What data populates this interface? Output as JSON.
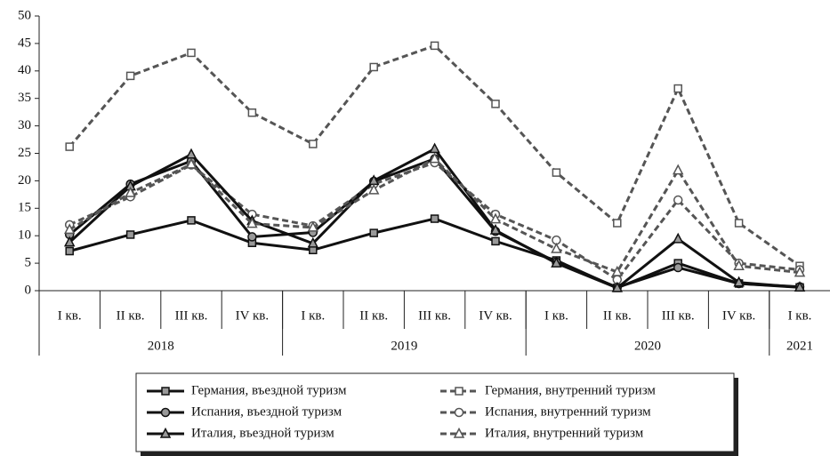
{
  "chart_data": {
    "type": "line",
    "groups": [
      {
        "name": "2018",
        "categories": [
          "I кв.",
          "II кв.",
          "III кв.",
          "IV кв."
        ]
      },
      {
        "name": "2019",
        "categories": [
          "I кв.",
          "II кв.",
          "III кв.",
          "IV кв."
        ]
      },
      {
        "name": "2020",
        "categories": [
          "I кв.",
          "II кв.",
          "III кв.",
          "IV кв."
        ]
      },
      {
        "name": "2021",
        "categories": [
          "I кв."
        ]
      }
    ],
    "ylim": [
      0,
      50
    ],
    "yticks": [
      0,
      5,
      10,
      15,
      20,
      25,
      30,
      35,
      40,
      45,
      50
    ],
    "grid": false,
    "series": [
      {
        "name": "Германия, въездной туризм",
        "color": "#111111",
        "marker": "square",
        "dash": false,
        "values": [
          7.2,
          10.2,
          12.8,
          8.7,
          7.4,
          10.5,
          13.1,
          9.0,
          5.5,
          0.5,
          5.0,
          1.3,
          0.6
        ]
      },
      {
        "name": "Германия, внутренний туризм",
        "color": "#555555",
        "marker": "square",
        "dash": true,
        "values": [
          26.2,
          39.1,
          43.3,
          32.4,
          26.7,
          40.7,
          44.6,
          34.0,
          21.5,
          12.3,
          36.8,
          12.3,
          4.5
        ]
      },
      {
        "name": "Испания, въездной туризм",
        "color": "#111111",
        "marker": "circle",
        "dash": false,
        "values": [
          10.2,
          19.4,
          23.6,
          9.8,
          10.6,
          19.9,
          24.0,
          10.8,
          5.2,
          0.6,
          4.2,
          1.3,
          0.7
        ]
      },
      {
        "name": "Испания, внутренний туризм",
        "color": "#555555",
        "marker": "circle",
        "dash": true,
        "values": [
          12.0,
          17.1,
          22.9,
          13.9,
          11.8,
          19.4,
          23.3,
          13.9,
          9.2,
          2.0,
          16.5,
          5.0,
          3.8
        ]
      },
      {
        "name": "Италия, въездной туризм",
        "color": "#111111",
        "marker": "triangle",
        "dash": false,
        "values": [
          8.8,
          19.0,
          24.8,
          12.7,
          8.6,
          20.0,
          25.8,
          11.0,
          5.0,
          0.5,
          9.4,
          1.5,
          0.6
        ]
      },
      {
        "name": "Италия, внутренний туризм",
        "color": "#555555",
        "marker": "triangle",
        "dash": true,
        "values": [
          11.1,
          17.8,
          23.0,
          12.2,
          11.5,
          18.3,
          24.0,
          13.0,
          7.6,
          3.4,
          21.9,
          4.5,
          3.3
        ]
      }
    ]
  }
}
